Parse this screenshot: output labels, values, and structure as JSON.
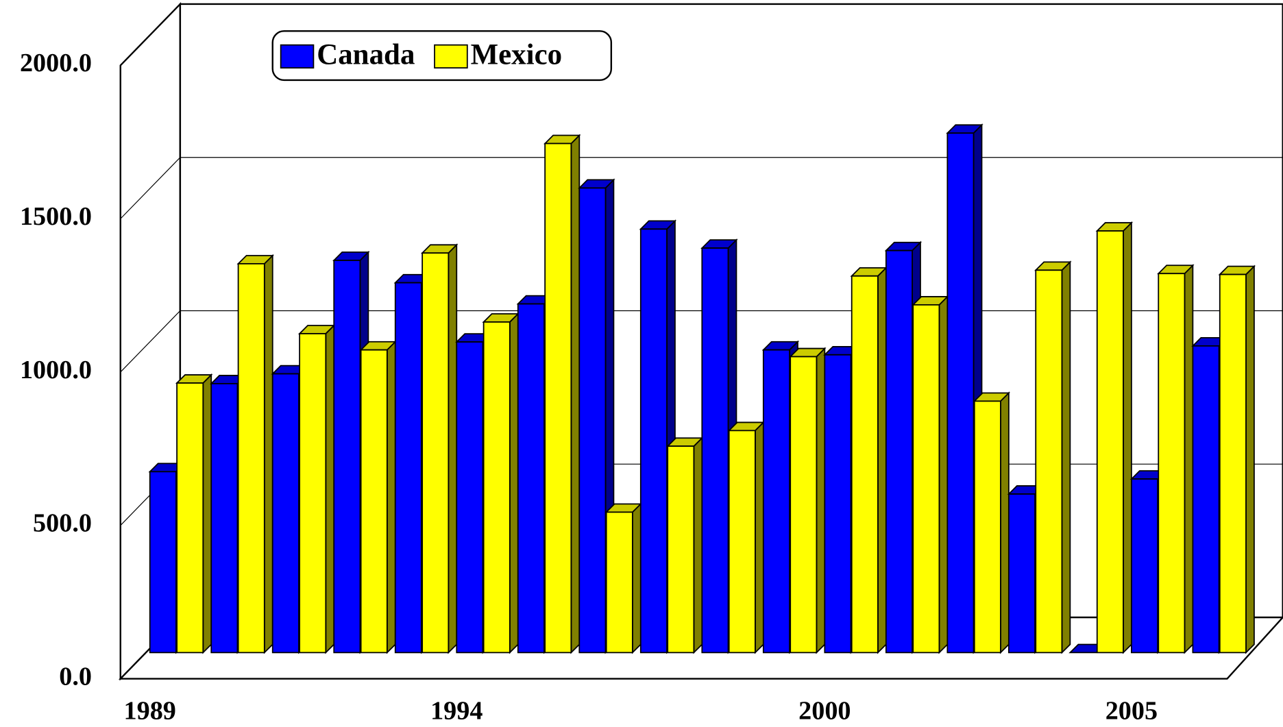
{
  "chart_data": {
    "type": "bar3d",
    "categories": [
      "1989",
      null,
      null,
      null,
      null,
      "1994",
      null,
      null,
      null,
      null,
      null,
      "2000",
      null,
      null,
      null,
      null,
      "2005",
      null
    ],
    "series": [
      {
        "name": "Canada",
        "color": "#0000ff",
        "values": [
          590,
          877,
          909,
          1279,
          1206,
          1013,
          1137,
          1515,
          1381,
          1319,
          987,
          971,
          1311,
          1694,
          517,
          0,
          566,
          1000
        ]
      },
      {
        "name": "Mexico",
        "color": "#ffff00",
        "values": [
          879,
          1268,
          1040,
          987,
          1303,
          1078,
          1660,
          458,
          673,
          724,
          965,
          1228,
          1134,
          820,
          1247,
          1375,
          1236,
          1233
        ]
      }
    ],
    "ylim": [
      0,
      2000
    ],
    "yticks": [
      {
        "value": 0,
        "label": "0.0"
      },
      {
        "value": 500,
        "label": "500.0"
      },
      {
        "value": 1000,
        "label": "1000.0"
      },
      {
        "value": 1500,
        "label": "1500.0"
      },
      {
        "value": 2000,
        "label": "2000.0"
      }
    ],
    "grid": true,
    "legend": "top-left"
  }
}
